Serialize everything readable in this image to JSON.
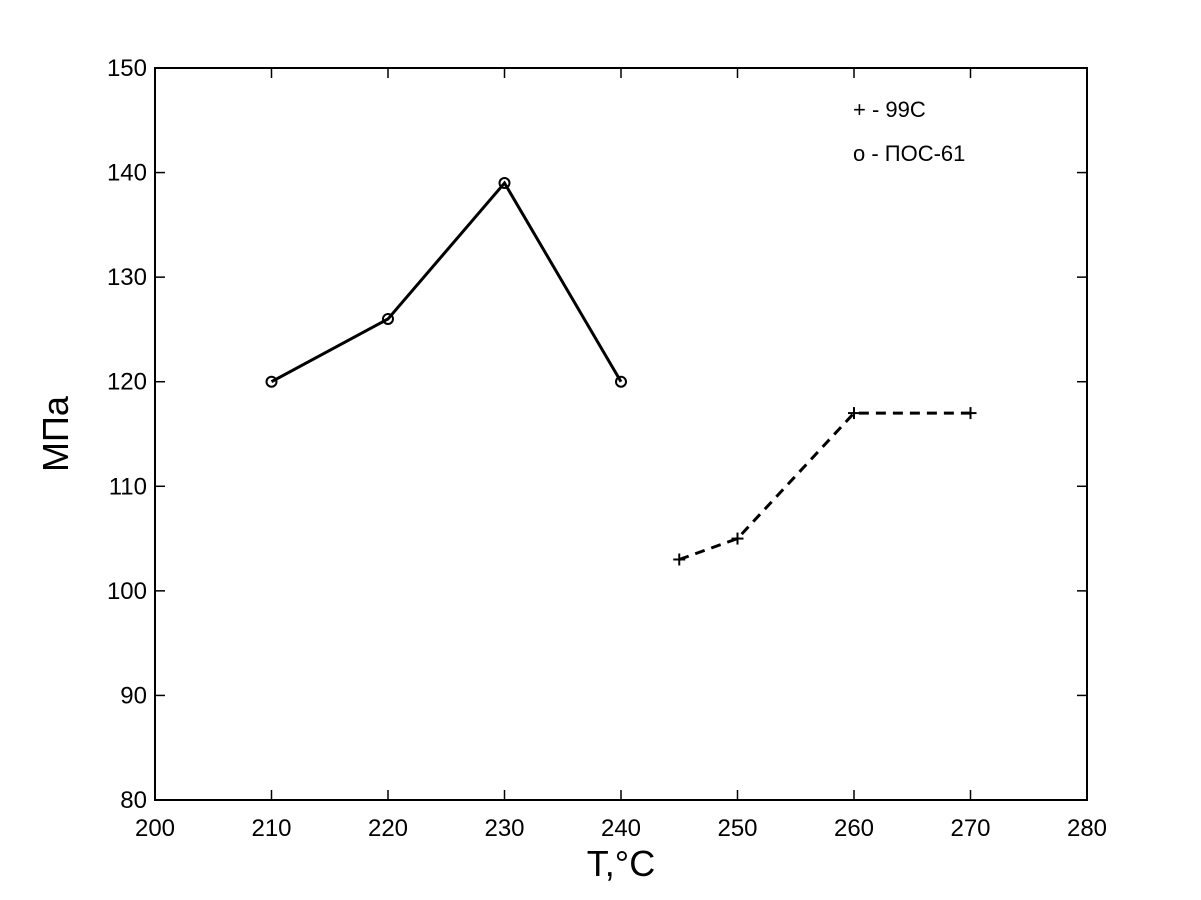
{
  "chart_data": {
    "type": "line",
    "title": "",
    "xlabel": "T,°C",
    "ylabel": "МПа",
    "xlim": [
      200,
      280
    ],
    "ylim": [
      80,
      150
    ],
    "xticks": [
      200,
      210,
      220,
      230,
      240,
      250,
      260,
      270,
      280
    ],
    "yticks": [
      80,
      90,
      100,
      110,
      120,
      130,
      140,
      150
    ],
    "grid": false,
    "legend": {
      "placement": "top-right",
      "entries": [
        {
          "label": "+ - 99С"
        },
        {
          "label": "o - ПОС-61"
        }
      ]
    },
    "series": [
      {
        "marker": "o",
        "line_style": "solid",
        "color": "#000000",
        "x": [
          210,
          220,
          230,
          240
        ],
        "y": [
          120,
          126,
          139,
          120
        ]
      },
      {
        "marker": "+",
        "line_style": "dashed",
        "color": "#000000",
        "x": [
          245,
          250,
          260,
          270
        ],
        "y": [
          103,
          105,
          117,
          117
        ]
      }
    ]
  }
}
